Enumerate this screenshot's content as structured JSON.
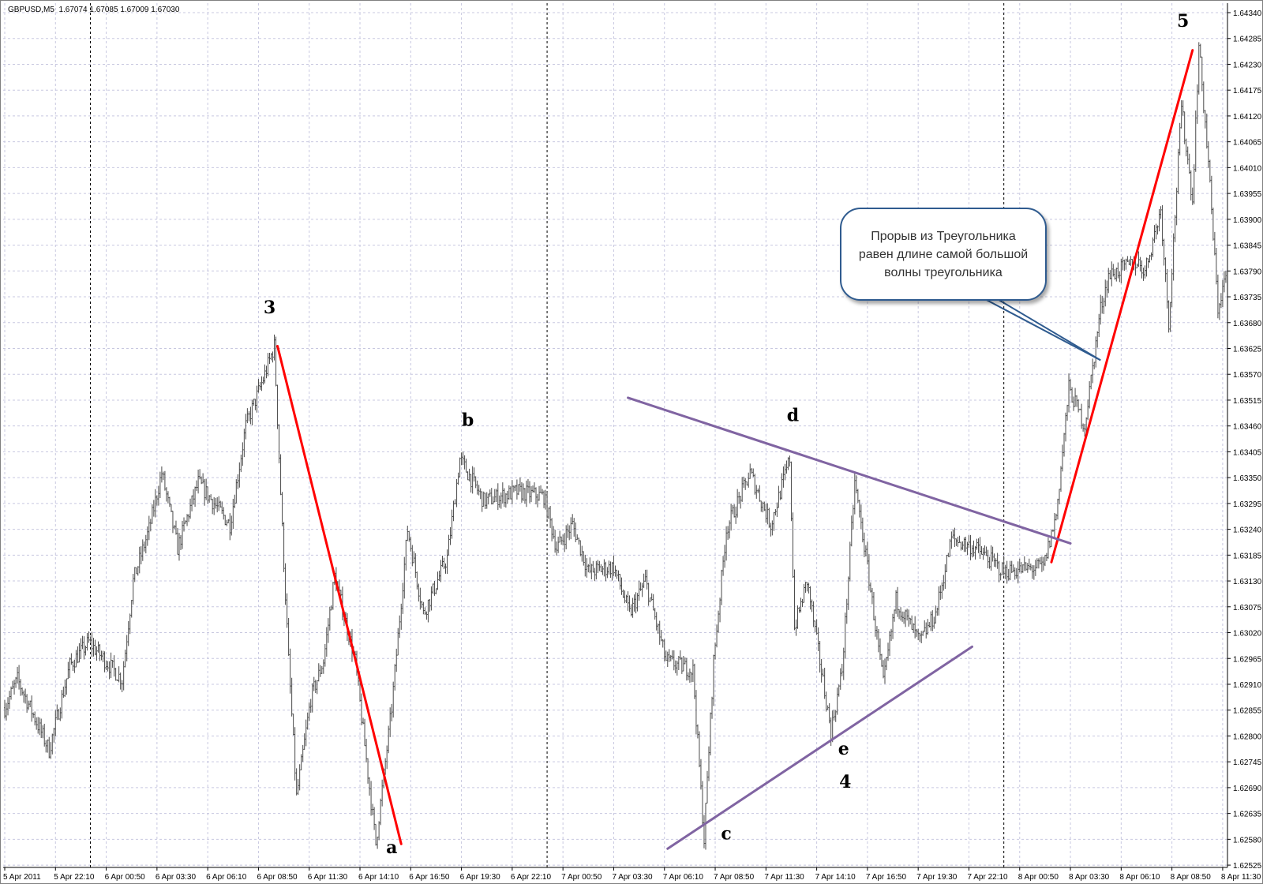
{
  "header": {
    "symbol": "GBPUSD,M5",
    "quote": "1.67074 1.67085 1.67009 1.67030"
  },
  "colors": {
    "bars": "#4a4a4a",
    "grid": "#c8c8e0",
    "trend_red": "#ff0000",
    "triangle": "#8064a2",
    "callout_border": "#2f5b8f",
    "separator": "#000000"
  },
  "callout": {
    "lines": [
      "Прорыв из Треугольника",
      "равен длине самой большой",
      "волны треугольника"
    ],
    "pointer_time": "8 Apr 05:05",
    "pointer_price": 1.636
  },
  "chart_data": {
    "type": "ohlc",
    "symbol": "GBPUSD",
    "timeframe": "M5",
    "grid": true,
    "period_separators": true,
    "ylim": [
      1.62525,
      1.6434
    ],
    "yticks": [
      "1.64340",
      "1.64285",
      "1.64230",
      "1.64175",
      "1.64120",
      "1.64065",
      "1.64010",
      "1.63955",
      "1.63900",
      "1.63845",
      "1.63790",
      "1.63735",
      "1.63680",
      "1.63625",
      "1.63570",
      "1.63515",
      "1.63460",
      "1.63405",
      "1.63350",
      "1.63295",
      "1.63240",
      "1.63185",
      "1.63130",
      "1.63075",
      "1.63020",
      "1.62965",
      "1.62910",
      "1.62855",
      "1.62800",
      "1.62745",
      "1.62690",
      "1.62635",
      "1.62580",
      "1.62525"
    ],
    "xticks": [
      "5 Apr 2011",
      "5 Apr 22:10",
      "6 Apr 00:50",
      "6 Apr 03:30",
      "6 Apr 06:10",
      "6 Apr 08:50",
      "6 Apr 11:30",
      "6 Apr 14:10",
      "6 Apr 16:50",
      "6 Apr 19:30",
      "6 Apr 22:10",
      "7 Apr 00:50",
      "7 Apr 03:30",
      "7 Apr 06:10",
      "7 Apr 08:50",
      "7 Apr 11:30",
      "7 Apr 14:10",
      "7 Apr 16:50",
      "7 Apr 19:30",
      "7 Apr 22:10",
      "8 Apr 00:50",
      "8 Apr 03:30",
      "8 Apr 06:10",
      "8 Apr 08:50",
      "8 Apr 11:30"
    ],
    "start_time": "5 Apr 19:30",
    "price_path": [
      [
        "5 Apr 19:30",
        1.6286
      ],
      [
        "5 Apr 20:10",
        1.6292
      ],
      [
        "5 Apr 21:50",
        1.6277
      ],
      [
        "5 Apr 22:55",
        1.6295
      ],
      [
        "5 Apr 23:55",
        1.63
      ],
      [
        "6 Apr 01:40",
        1.6292
      ],
      [
        "6 Apr 02:15",
        1.6313
      ],
      [
        "6 Apr 03:05",
        1.6324
      ],
      [
        "6 Apr 03:45",
        1.6336
      ],
      [
        "6 Apr 04:35",
        1.632
      ],
      [
        "6 Apr 05:40",
        1.6334
      ],
      [
        "6 Apr 07:20",
        1.6325
      ],
      [
        "6 Apr 08:10",
        1.6346
      ],
      [
        "6 Apr 09:05",
        1.6356
      ],
      [
        "6 Apr 09:40",
        1.6363
      ],
      [
        "6 Apr 10:05",
        1.6324
      ],
      [
        "6 Apr 10:25",
        1.6296
      ],
      [
        "6 Apr 10:50",
        1.6267
      ],
      [
        "6 Apr 11:35",
        1.6288
      ],
      [
        "6 Apr 12:15",
        1.6296
      ],
      [
        "6 Apr 12:50",
        1.6314
      ],
      [
        "6 Apr 13:55",
        1.6296
      ],
      [
        "6 Apr 15:00",
        1.6257
      ],
      [
        "6 Apr 15:50",
        1.6286
      ],
      [
        "6 Apr 16:40",
        1.6324
      ],
      [
        "6 Apr 17:30",
        1.6306
      ],
      [
        "6 Apr 18:45",
        1.6318
      ],
      [
        "6 Apr 19:25",
        1.6339
      ],
      [
        "6 Apr 20:40",
        1.633
      ],
      [
        "6 Apr 22:25",
        1.6332
      ],
      [
        "6 Apr 23:50",
        1.6331
      ],
      [
        "7 Apr 00:30",
        1.632
      ],
      [
        "7 Apr 01:20",
        1.6325
      ],
      [
        "7 Apr 02:10",
        1.6315
      ],
      [
        "7 Apr 03:30",
        1.6316
      ],
      [
        "7 Apr 04:20",
        1.6306
      ],
      [
        "7 Apr 05:10",
        1.6313
      ],
      [
        "7 Apr 06:15",
        1.6296
      ],
      [
        "7 Apr 07:40",
        1.6294
      ],
      [
        "7 Apr 08:15",
        1.6258
      ],
      [
        "7 Apr 08:45",
        1.6296
      ],
      [
        "7 Apr 09:25",
        1.6324
      ],
      [
        "7 Apr 10:40",
        1.6336
      ],
      [
        "7 Apr 11:45",
        1.6325
      ],
      [
        "7 Apr 12:45",
        1.6339
      ],
      [
        "7 Apr 13:00",
        1.6303
      ],
      [
        "7 Apr 13:40",
        1.6313
      ],
      [
        "7 Apr 14:55",
        1.6281
      ],
      [
        "7 Apr 15:30",
        1.6294
      ],
      [
        "7 Apr 16:10",
        1.6334
      ],
      [
        "7 Apr 16:50",
        1.6316
      ],
      [
        "7 Apr 17:40",
        1.6291
      ],
      [
        "7 Apr 18:20",
        1.6309
      ],
      [
        "7 Apr 19:35",
        1.63
      ],
      [
        "7 Apr 20:25",
        1.6306
      ],
      [
        "7 Apr 21:15",
        1.6322
      ],
      [
        "7 Apr 22:30",
        1.632
      ],
      [
        "8 Apr 00:00",
        1.6315
      ],
      [
        "8 Apr 02:05",
        1.6316
      ],
      [
        "8 Apr 02:45",
        1.6327
      ],
      [
        "8 Apr 03:25",
        1.6354
      ],
      [
        "8 Apr 04:15",
        1.6346
      ],
      [
        "8 Apr 05:05",
        1.6371
      ],
      [
        "8 Apr 05:30",
        1.6378
      ],
      [
        "8 Apr 07:00",
        1.6381
      ],
      [
        "8 Apr 07:25",
        1.6379
      ],
      [
        "8 Apr 08:15",
        1.6392
      ],
      [
        "8 Apr 08:40",
        1.6368
      ],
      [
        "8 Apr 09:20",
        1.6414
      ],
      [
        "8 Apr 09:55",
        1.6394
      ],
      [
        "8 Apr 10:15",
        1.6427
      ],
      [
        "8 Apr 10:45",
        1.6402
      ],
      [
        "8 Apr 11:15",
        1.6371
      ],
      [
        "8 Apr 11:40",
        1.6378
      ]
    ],
    "trendlines": [
      {
        "color": "red",
        "from": [
          "6 Apr 09:50",
          1.6363
        ],
        "to": [
          "6 Apr 16:20",
          1.6257
        ]
      },
      {
        "color": "red",
        "from": [
          "8 Apr 02:30",
          1.6317
        ],
        "to": [
          "8 Apr 09:55",
          1.6426
        ]
      },
      {
        "color": "purple",
        "from": [
          "7 Apr 04:15",
          1.6352
        ],
        "to": [
          "8 Apr 03:30",
          1.6321
        ]
      },
      {
        "color": "purple",
        "from": [
          "7 Apr 06:20",
          1.6256
        ],
        "to": [
          "7 Apr 22:20",
          1.6299
        ]
      }
    ],
    "annotations": [
      {
        "text": "3",
        "time": "6 Apr 09:25",
        "price": 1.637
      },
      {
        "text": "a",
        "time": "6 Apr 15:50",
        "price": 1.6255
      },
      {
        "text": "b",
        "time": "6 Apr 19:50",
        "price": 1.6346
      },
      {
        "text": "c",
        "time": "7 Apr 09:25",
        "price": 1.6258
      },
      {
        "text": "d",
        "time": "7 Apr 12:55",
        "price": 1.6347
      },
      {
        "text": "e",
        "time": "7 Apr 15:35",
        "price": 1.6276
      },
      {
        "text": "4",
        "time": "7 Apr 15:40",
        "price": 1.6269
      },
      {
        "text": "5",
        "time": "8 Apr 09:25",
        "price": 1.6431
      }
    ]
  }
}
